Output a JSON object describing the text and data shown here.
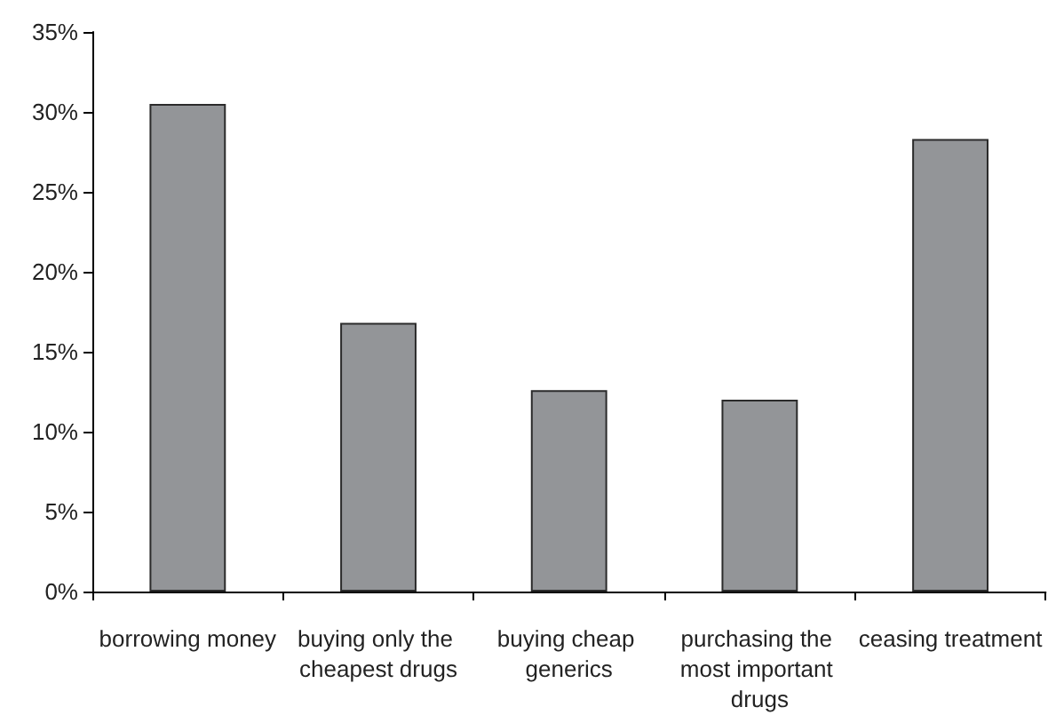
{
  "chart_data": {
    "type": "bar",
    "categories": [
      "borrowing money",
      "buying only the cheapest drugs",
      "buying cheap generics",
      "purchasing the most important drugs",
      "ceasing treatment"
    ],
    "values": [
      30.5,
      16.8,
      12.6,
      12.0,
      28.3
    ],
    "color": "#939598",
    "ylim": [
      0,
      35
    ],
    "yticks": [
      {
        "value": 0,
        "label": "0%"
      },
      {
        "value": 5,
        "label": "5%"
      },
      {
        "value": 10,
        "label": "10%"
      },
      {
        "value": 15,
        "label": "15%"
      },
      {
        "value": 20,
        "label": "20%"
      },
      {
        "value": 25,
        "label": "25%"
      },
      {
        "value": 30,
        "label": "30%"
      },
      {
        "value": 35,
        "label": "35%"
      }
    ],
    "grid": false
  }
}
